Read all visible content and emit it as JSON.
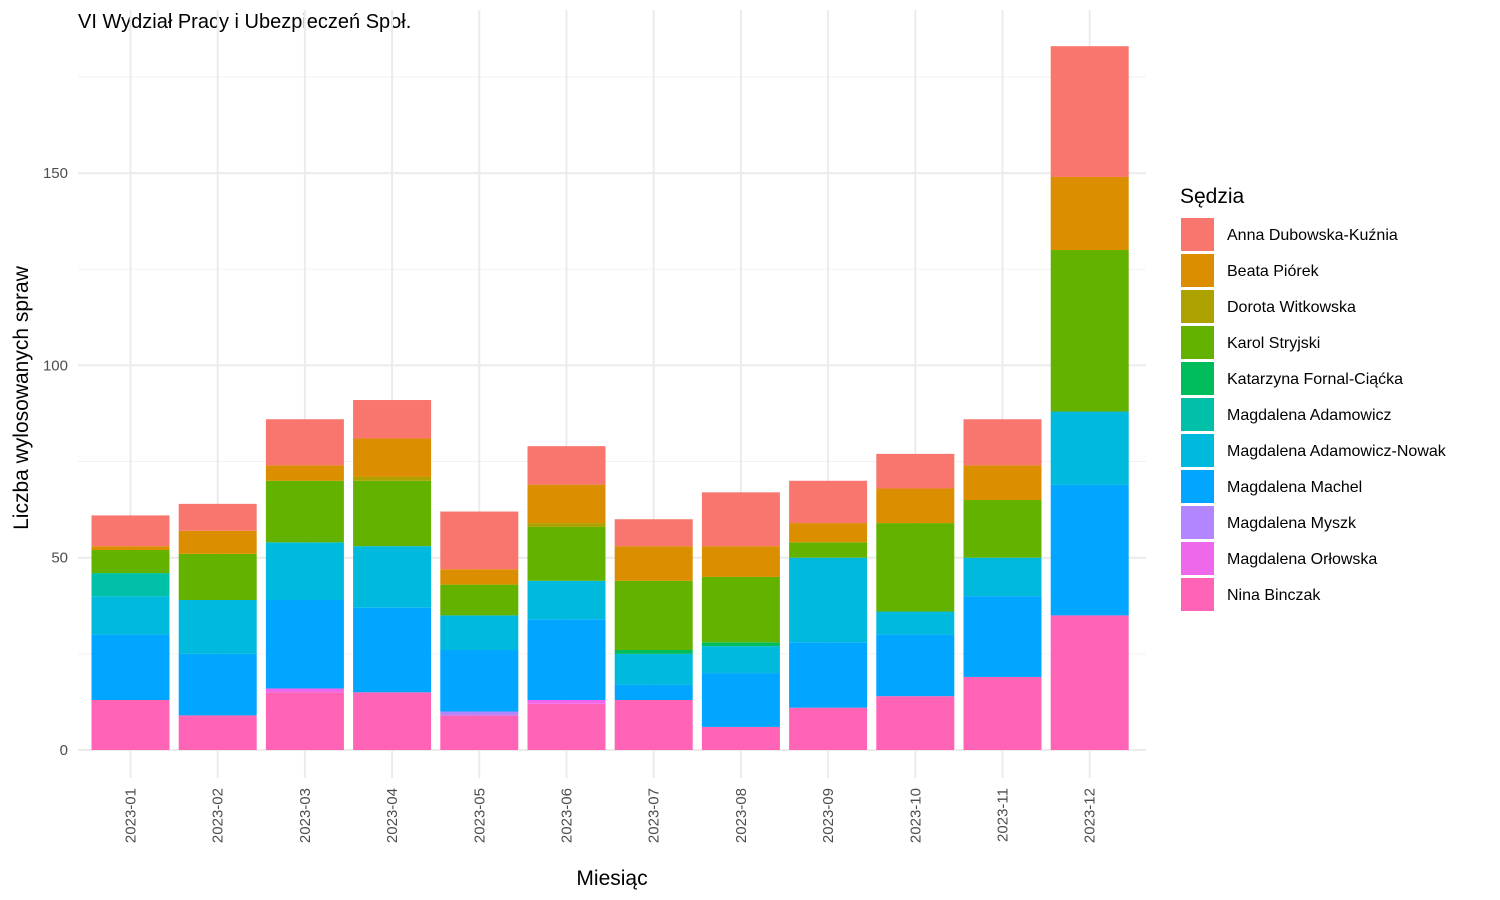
{
  "chart_data": {
    "type": "bar",
    "stacked": true,
    "title": "VI Wydział Pracy i Ubezpieczeń Społ.",
    "xlabel": "Miesiąc",
    "ylabel": "Liczba wylosowanych spraw",
    "ylim": [
      0,
      185
    ],
    "yticks": [
      0,
      50,
      100,
      150
    ],
    "grid": true,
    "legend_position": "right",
    "legend_title": "Sędzia",
    "categories": [
      "2023-01",
      "2023-02",
      "2023-03",
      "2023-04",
      "2023-05",
      "2023-06",
      "2023-07",
      "2023-08",
      "2023-09",
      "2023-10",
      "2023-11",
      "2023-12"
    ],
    "series": [
      {
        "name": "Anna Dubowska-Kuźnia",
        "color": "#F8766D",
        "values": [
          8,
          7,
          12,
          10,
          15,
          10,
          7,
          14,
          11,
          9,
          12,
          34
        ]
      },
      {
        "name": "Beata Piórek",
        "color": "#DB8E00",
        "values": [
          1,
          6,
          4,
          10,
          4,
          10,
          9,
          8,
          5,
          9,
          9,
          19
        ]
      },
      {
        "name": "Dorota Witkowska",
        "color": "#AEA200",
        "values": [
          0,
          0,
          0,
          1,
          0,
          1,
          0,
          0,
          0,
          0,
          0,
          0
        ]
      },
      {
        "name": "Karol Stryjski",
        "color": "#64B200",
        "values": [
          6,
          12,
          16,
          17,
          8,
          14,
          18,
          17,
          4,
          23,
          15,
          42
        ]
      },
      {
        "name": "Katarzyna Fornal-Ciąćka",
        "color": "#00BD5C",
        "values": [
          0,
          0,
          0,
          0,
          0,
          0,
          1,
          1,
          0,
          0,
          0,
          0
        ]
      },
      {
        "name": "Magdalena Adamowicz",
        "color": "#00C1A7",
        "values": [
          6,
          0,
          0,
          0,
          0,
          0,
          0,
          0,
          0,
          0,
          0,
          0
        ]
      },
      {
        "name": "Magdalena Adamowicz-Nowak",
        "color": "#00BADE",
        "values": [
          10,
          14,
          15,
          16,
          9,
          10,
          8,
          7,
          22,
          6,
          10,
          19
        ]
      },
      {
        "name": "Magdalena Machel",
        "color": "#00A6FF",
        "values": [
          17,
          16,
          23,
          22,
          16,
          21,
          4,
          14,
          17,
          16,
          21,
          34
        ]
      },
      {
        "name": "Magdalena Myszk",
        "color": "#B385FF",
        "values": [
          0,
          0,
          0,
          0,
          1,
          0,
          0,
          0,
          0,
          0,
          0,
          0
        ]
      },
      {
        "name": "Magdalena Orłowska",
        "color": "#EF67EB",
        "values": [
          0,
          0,
          1,
          0,
          0,
          1,
          0,
          0,
          0,
          0,
          0,
          0
        ]
      },
      {
        "name": "Nina Binczak",
        "color": "#FF63B6",
        "values": [
          13,
          9,
          15,
          15,
          9,
          12,
          13,
          6,
          11,
          14,
          19,
          35
        ]
      }
    ]
  }
}
